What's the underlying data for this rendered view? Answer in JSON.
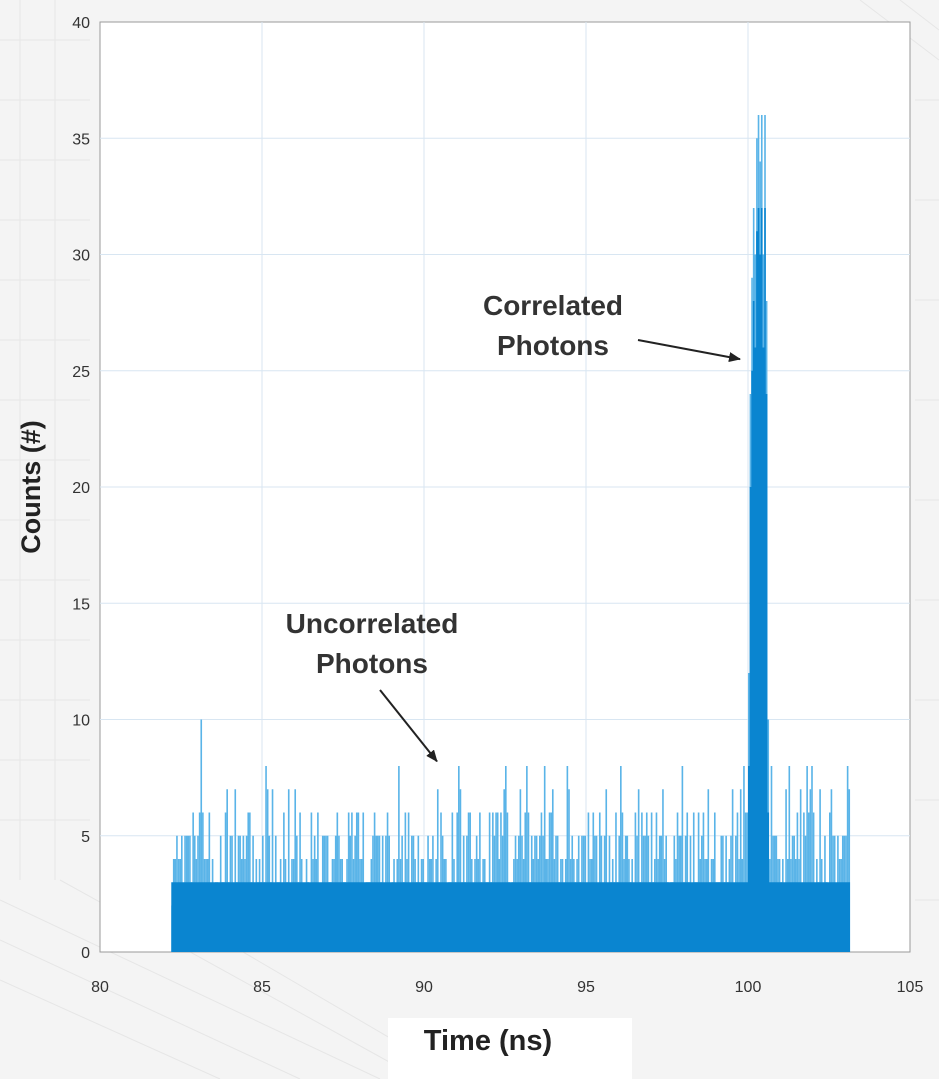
{
  "chart_data": {
    "type": "bar",
    "title": "",
    "xlabel": "Time (ns)",
    "ylabel": "Counts (#)",
    "xlim": [
      80,
      105
    ],
    "ylim": [
      0,
      40
    ],
    "xticks": [
      80,
      85,
      90,
      95,
      100,
      105
    ],
    "yticks": [
      0,
      5,
      10,
      15,
      20,
      25,
      30,
      35,
      40
    ],
    "grid": true,
    "bar_color": "#0a85d0",
    "bar_light_color": "#5ab4e8",
    "series": [
      {
        "x_start": 82.2,
        "x_end": 103.1,
        "bin_width": 0.05,
        "baseline_range": [
          0,
          8
        ],
        "peak": {
          "x": [
            100.0,
            100.05,
            100.1,
            100.15,
            100.2,
            100.25,
            100.3,
            100.35,
            100.4,
            100.45,
            100.5,
            100.55,
            100.6
          ],
          "values": [
            12,
            24,
            29,
            32,
            30,
            35,
            36,
            34,
            36,
            30,
            36,
            28,
            10
          ]
        }
      }
    ],
    "annotations": [
      {
        "text_lines": [
          "Correlated",
          "Photons"
        ],
        "points_to": [
          100.0,
          25.5
        ]
      },
      {
        "text_lines": [
          "Uncorrelated",
          "Photons"
        ],
        "points_to": [
          90.4,
          8.2
        ]
      }
    ]
  }
}
